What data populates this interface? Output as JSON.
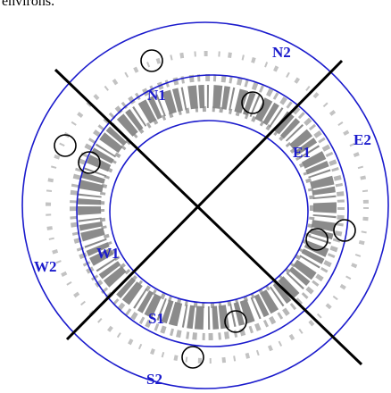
{
  "caption_fragment": "environs.",
  "regions": [
    {
      "label": "N2"
    },
    {
      "label": "N1"
    },
    {
      "label": "E1"
    },
    {
      "label": "E2"
    },
    {
      "label": "W1"
    },
    {
      "label": "W2"
    },
    {
      "label": "S1"
    },
    {
      "label": "S2"
    }
  ]
}
